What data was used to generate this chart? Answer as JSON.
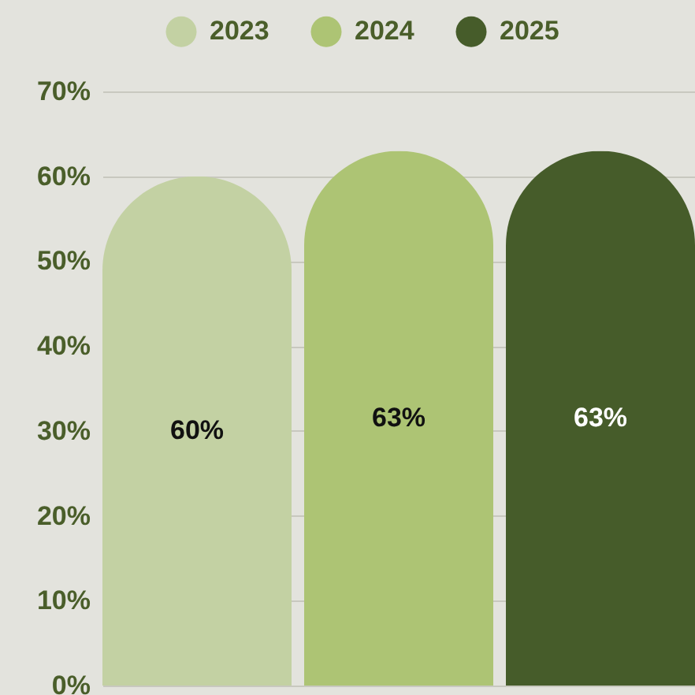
{
  "chart_data": {
    "type": "bar",
    "categories": [
      null,
      null,
      null
    ],
    "series": [
      {
        "name": "2023",
        "color": "#c3d1a3",
        "values": [
          60,
          null,
          null
        ],
        "value_labels": [
          "60%",
          null,
          null
        ]
      },
      {
        "name": "2024",
        "color": "#adc474",
        "values": [
          null,
          63,
          null
        ],
        "value_labels": [
          null,
          "63%",
          null
        ]
      },
      {
        "name": "2025",
        "color": "#465c2a",
        "values": [
          null,
          null,
          63
        ],
        "value_labels": [
          null,
          null,
          "63%"
        ]
      }
    ],
    "ylim": [
      0,
      70
    ],
    "yticks": [
      {
        "value": 0,
        "label": "0%"
      },
      {
        "value": 10,
        "label": "10%"
      },
      {
        "value": 20,
        "label": "20%"
      },
      {
        "value": 30,
        "label": "30%"
      },
      {
        "value": 40,
        "label": "40%"
      },
      {
        "value": 50,
        "label": "50%"
      },
      {
        "value": 60,
        "label": "60%"
      },
      {
        "value": 70,
        "label": "70%"
      }
    ],
    "grid": "y",
    "legend": "top"
  }
}
